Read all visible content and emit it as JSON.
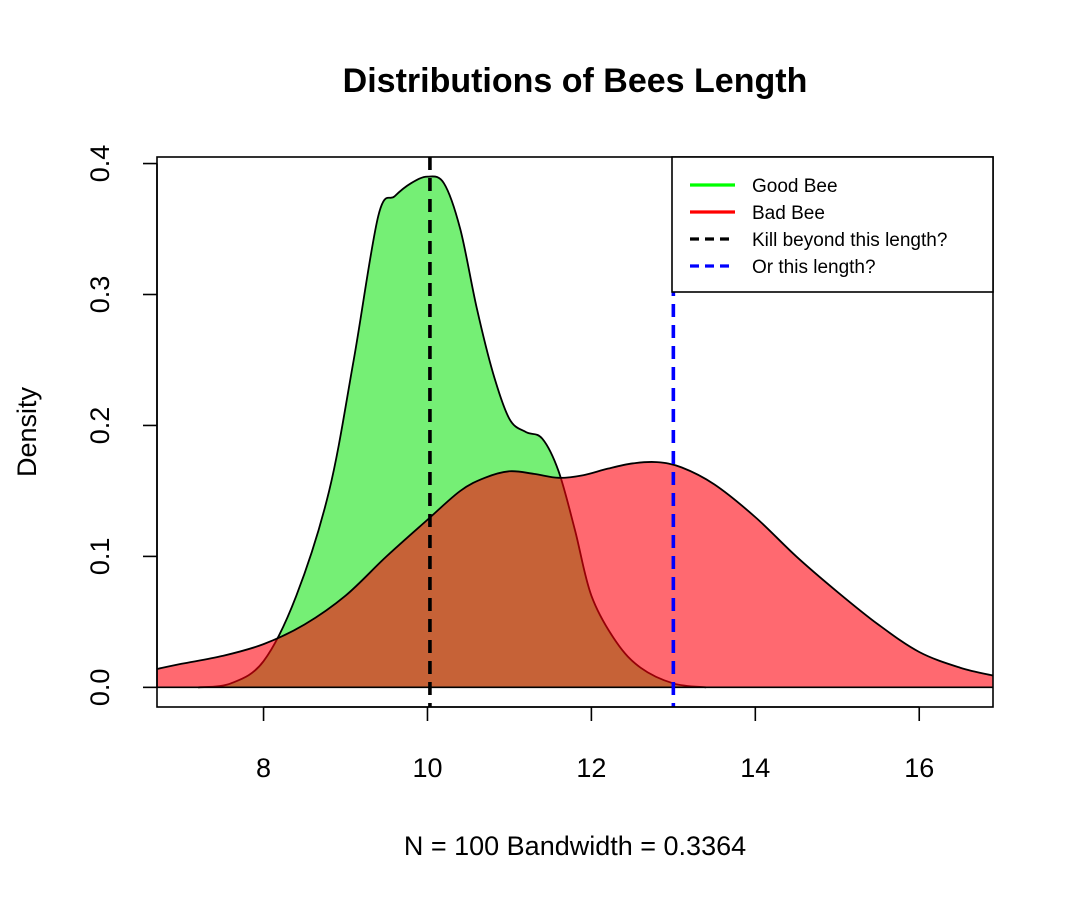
{
  "chart_data": {
    "type": "area",
    "title": "Distributions of Bees Length",
    "ylabel": "Density",
    "xlabel": "N = 100   Bandwidth = 0.3364",
    "xlim": [
      6.7,
      16.9
    ],
    "ylim": [
      -0.015,
      0.405
    ],
    "x_ticks": [
      8,
      10,
      12,
      14,
      16
    ],
    "x_tick_labels": [
      "8",
      "10",
      "12",
      "14",
      "16"
    ],
    "y_ticks": [
      0.0,
      0.1,
      0.2,
      0.3,
      0.4
    ],
    "y_tick_labels": [
      "0.0",
      "0.1",
      "0.2",
      "0.3",
      "0.4"
    ],
    "grid": false,
    "legend_position": "top-right",
    "series": [
      {
        "name": "Good Bee",
        "color": "#00ff00",
        "fill": "rgba(0,225,0,0.54)",
        "points": [
          [
            7.2,
            0.0
          ],
          [
            7.6,
            0.003
          ],
          [
            8.0,
            0.02
          ],
          [
            8.4,
            0.07
          ],
          [
            8.8,
            0.15
          ],
          [
            9.1,
            0.25
          ],
          [
            9.4,
            0.36
          ],
          [
            9.6,
            0.375
          ],
          [
            9.8,
            0.385
          ],
          [
            10.0,
            0.39
          ],
          [
            10.2,
            0.385
          ],
          [
            10.4,
            0.35
          ],
          [
            10.6,
            0.29
          ],
          [
            10.8,
            0.24
          ],
          [
            11.0,
            0.205
          ],
          [
            11.2,
            0.195
          ],
          [
            11.4,
            0.19
          ],
          [
            11.6,
            0.165
          ],
          [
            11.8,
            0.12
          ],
          [
            12.0,
            0.07
          ],
          [
            12.3,
            0.035
          ],
          [
            12.6,
            0.015
          ],
          [
            13.0,
            0.003
          ],
          [
            13.4,
            0.0
          ]
        ]
      },
      {
        "name": "Bad Bee",
        "color": "#ff0000",
        "fill": "rgba(255,0,12,0.59)",
        "points": [
          [
            6.7,
            0.014
          ],
          [
            7.0,
            0.018
          ],
          [
            7.5,
            0.024
          ],
          [
            8.0,
            0.033
          ],
          [
            8.5,
            0.048
          ],
          [
            9.0,
            0.07
          ],
          [
            9.5,
            0.1
          ],
          [
            10.0,
            0.128
          ],
          [
            10.4,
            0.15
          ],
          [
            10.7,
            0.16
          ],
          [
            11.0,
            0.165
          ],
          [
            11.3,
            0.163
          ],
          [
            11.6,
            0.16
          ],
          [
            11.9,
            0.162
          ],
          [
            12.2,
            0.167
          ],
          [
            12.5,
            0.171
          ],
          [
            12.8,
            0.172
          ],
          [
            13.1,
            0.168
          ],
          [
            13.5,
            0.155
          ],
          [
            14.0,
            0.13
          ],
          [
            14.5,
            0.1
          ],
          [
            15.0,
            0.073
          ],
          [
            15.5,
            0.048
          ],
          [
            16.0,
            0.027
          ],
          [
            16.5,
            0.015
          ],
          [
            16.9,
            0.009
          ]
        ]
      }
    ],
    "vlines": [
      {
        "name": "Kill beyond this length?",
        "x": 10.03,
        "color": "#000000"
      },
      {
        "name": "Or this length?",
        "x": 13.0,
        "color": "#0000ff"
      }
    ]
  }
}
